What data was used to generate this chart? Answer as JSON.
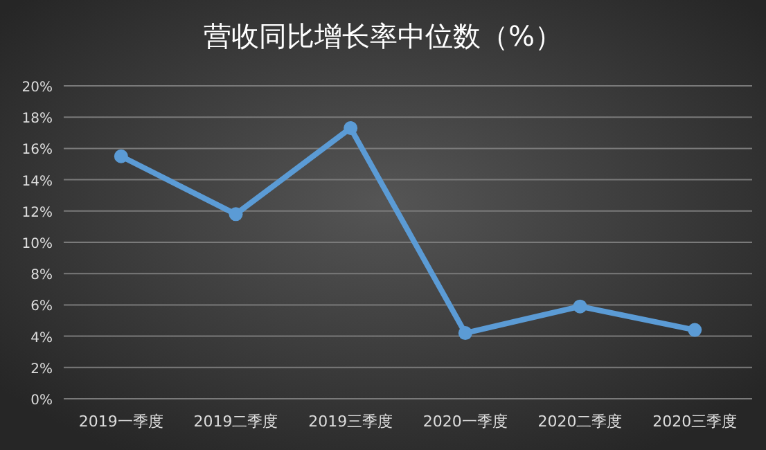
{
  "chart_data": {
    "type": "line",
    "title": "营收同比增长率中位数（%）",
    "categories": [
      "2019一季度",
      "2019二季度",
      "2019三季度",
      "2020一季度",
      "2020二季度",
      "2020三季度"
    ],
    "series": [
      {
        "color": "#5b9bd5",
        "values": [
          15.5,
          11.8,
          17.3,
          4.2,
          5.9,
          4.4
        ]
      }
    ],
    "ylim": [
      0,
      20
    ],
    "yticks": [
      {
        "value": 0,
        "label": "0%"
      },
      {
        "value": 2,
        "label": "2%"
      },
      {
        "value": 4,
        "label": "4%"
      },
      {
        "value": 6,
        "label": "6%"
      },
      {
        "value": 8,
        "label": "8%"
      },
      {
        "value": 10,
        "label": "10%"
      },
      {
        "value": 12,
        "label": "12%"
      },
      {
        "value": 14,
        "label": "14%"
      },
      {
        "value": 16,
        "label": "16%"
      },
      {
        "value": 18,
        "label": "18%"
      },
      {
        "value": 20,
        "label": "20%"
      }
    ],
    "grid": "y",
    "marker": "circle",
    "line_style": "solid"
  }
}
